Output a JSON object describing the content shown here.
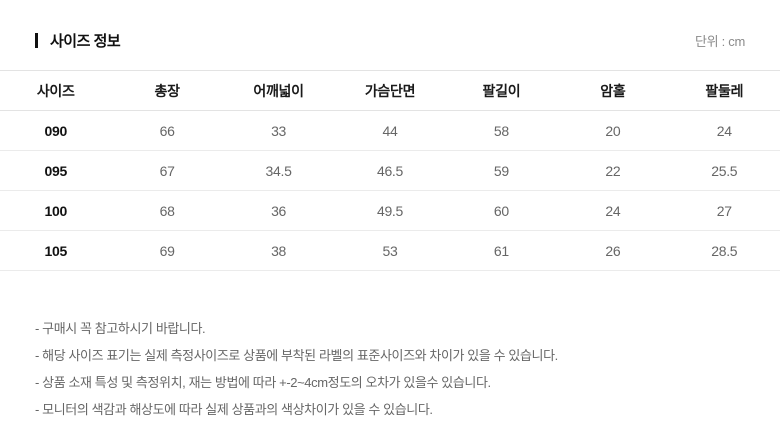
{
  "header": {
    "title": "사이즈 정보",
    "unit_label": "단위 : cm"
  },
  "table": {
    "columns": [
      "사이즈",
      "총장",
      "어깨넓이",
      "가슴단면",
      "팔길이",
      "암홀",
      "팔둘레"
    ],
    "rows": [
      {
        "size": "090",
        "values": [
          "66",
          "33",
          "44",
          "58",
          "20",
          "24"
        ]
      },
      {
        "size": "095",
        "values": [
          "67",
          "34.5",
          "46.5",
          "59",
          "22",
          "25.5"
        ]
      },
      {
        "size": "100",
        "values": [
          "68",
          "36",
          "49.5",
          "60",
          "24",
          "27"
        ]
      },
      {
        "size": "105",
        "values": [
          "69",
          "38",
          "53",
          "61",
          "26",
          "28.5"
        ]
      }
    ]
  },
  "notes": [
    "- 구매시 꼭 참고하시기 바랍니다.",
    "- 해당 사이즈 표기는 실제 측정사이즈로 상품에 부착된 라벨의 표준사이즈와 차이가 있을 수 있습니다.",
    "- 상품 소재 특성 및 측정위치, 재는 방법에 따라 +-2~4cm정도의 오차가 있을수 있습니다.",
    "- 모니터의 색감과 해상도에 따라 실제 상품과의 색상차이가 있을 수 있습니다."
  ]
}
